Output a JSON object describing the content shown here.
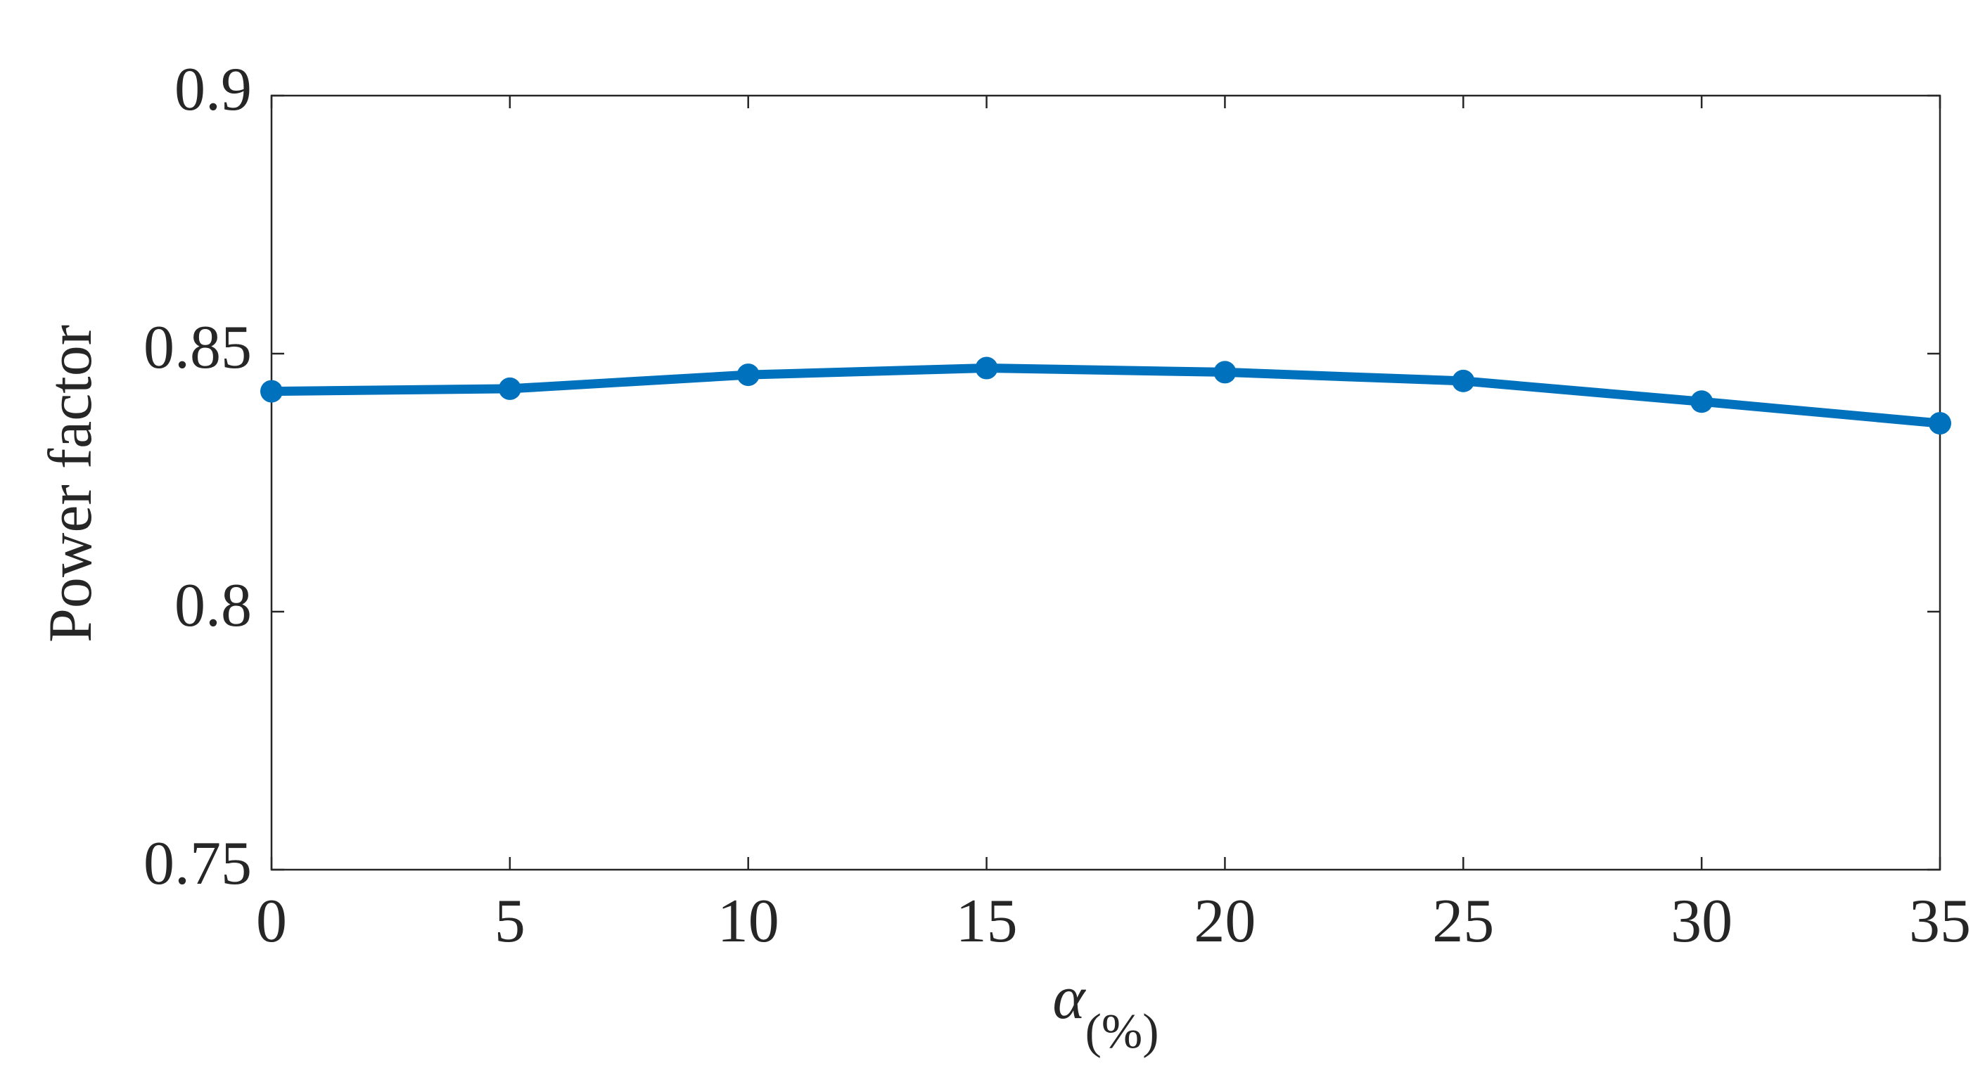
{
  "chart_data": {
    "type": "line",
    "xlabel": "α",
    "xlabel_sub": "(%)",
    "ylabel": "Power factor",
    "x": [
      0,
      5,
      10,
      15,
      20,
      25,
      30,
      35
    ],
    "series": [
      {
        "color": "#0072bd",
        "values": [
          0.8427,
          0.8432,
          0.8459,
          0.8472,
          0.8464,
          0.8447,
          0.8407,
          0.8365
        ]
      }
    ],
    "xlim": [
      0,
      35
    ],
    "xticks": [
      0,
      5,
      10,
      15,
      20,
      25,
      30,
      35
    ],
    "ylim": [
      0.75,
      0.9
    ],
    "yticks": [
      0.75,
      0.8,
      0.85,
      0.9
    ],
    "grid": false
  }
}
